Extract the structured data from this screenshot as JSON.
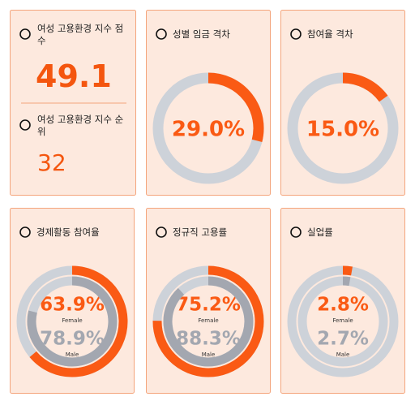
{
  "kpi": {
    "score_title": "여성 고용환경 지수 점수",
    "score": "49.1",
    "rank_title": "여성 고용환경 지수 순위",
    "rank": "32"
  },
  "chart_data": [
    {
      "type": "donut",
      "title": "성별 임금 격차",
      "ylim": [
        0,
        100
      ],
      "values": [
        29.0
      ],
      "value_labels": [
        "29.0%"
      ],
      "color": "#fa5a14",
      "track_color": "#cdd2d9"
    },
    {
      "type": "donut",
      "title": "참여율 격차",
      "ylim": [
        0,
        100
      ],
      "values": [
        15.0
      ],
      "value_labels": [
        "15.0%"
      ],
      "color": "#fa5a14",
      "track_color": "#cdd2d9"
    },
    {
      "type": "double_donut",
      "title": "경제활동 참여율",
      "ylim": [
        0,
        100
      ],
      "track_color": "#cdd2d9",
      "series": [
        {
          "name": "Female",
          "color": "#fa5a14",
          "values": [
            63.9
          ],
          "value_labels": [
            "63.9%"
          ]
        },
        {
          "name": "Male",
          "color": "#a3a7b0",
          "values": [
            78.9
          ],
          "value_labels": [
            "78.9%"
          ]
        }
      ]
    },
    {
      "type": "double_donut",
      "title": "정규직 고용률",
      "ylim": [
        0,
        100
      ],
      "track_color": "#cdd2d9",
      "series": [
        {
          "name": "Female",
          "color": "#fa5a14",
          "values": [
            75.2
          ],
          "value_labels": [
            "75.2%"
          ]
        },
        {
          "name": "Male",
          "color": "#a3a7b0",
          "values": [
            88.3
          ],
          "value_labels": [
            "88.3%"
          ]
        }
      ]
    },
    {
      "type": "double_donut",
      "title": "실업률",
      "ylim": [
        0,
        100
      ],
      "track_color": "#cdd2d9",
      "series": [
        {
          "name": "Female",
          "color": "#fa5a14",
          "values": [
            2.8
          ],
          "value_labels": [
            "2.8%"
          ]
        },
        {
          "name": "Male",
          "color": "#a3a7b0",
          "values": [
            2.7
          ],
          "value_labels": [
            "2.7%"
          ]
        }
      ]
    }
  ]
}
